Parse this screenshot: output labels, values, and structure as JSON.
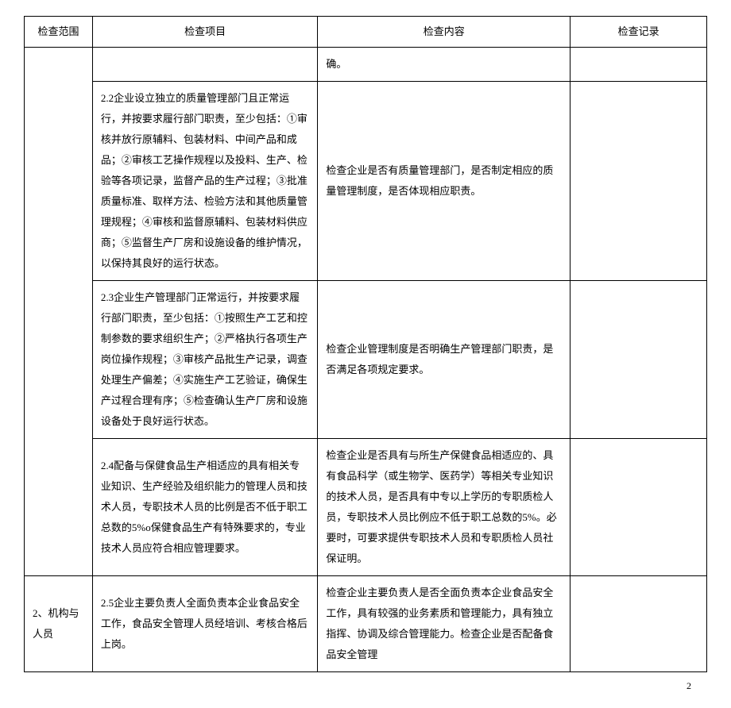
{
  "headers": {
    "scope": "检查范围",
    "item": "检查项目",
    "content": "检查内容",
    "record": "检查记录"
  },
  "rows": [
    {
      "scope": "",
      "item": "",
      "content": "确。",
      "record": ""
    },
    {
      "scope": "",
      "item": "2.2企业设立独立的质量管理部门且正常运行，并按要求履行部门职责，至少包括：①审核并放行原辅料、包装材料、中间产品和成品；②审核工艺操作规程以及投料、生产、检验等各项记录，监督产品的生产过程；③批准质量标准、取样方法、检验方法和其他质量管理规程；④审核和监督原辅料、包装材料供应商；⑤监督生产厂房和设施设备的维护情况，以保持其良好的运行状态。",
      "content": "检查企业是否有质量管理部门，是否制定相应的质量管理制度，是否体现相应职责。",
      "record": ""
    },
    {
      "scope": "",
      "item": "2.3企业生产管理部门正常运行，并按要求履行部门职责，至少包括：①按照生产工艺和控制参数的要求组织生产；②严格执行各项生产岗位操作规程；③审核产品批生产记录，调查处理生产偏差；④实施生产工艺验证，确保生产过程合理有序；⑤检查确认生产厂房和设施设备处于良好运行状态。",
      "content": "检查企业管理制度是否明确生产管理部门职责，是否满足各项规定要求。",
      "record": ""
    },
    {
      "scope": "",
      "item": "2.4配备与保健食品生产相适应的具有相关专业知识、生产经验及组织能力的管理人员和技术人员，专职技术人员的比例是否不低于职工总数的5%o保健食品生产有特殊要求的，专业技术人员应符合相应管理要求。",
      "content": "检查企业是否具有与所生产保健食品相适应的、具有食品科学（或生物学、医药学）等相关专业知识的技术人员，是否具有中专以上学历的专职质检人员，专职技术人员比例应不低于职工总数的5%。必要时，可要求提供专职技术人员和专职质检人员社保证明。",
      "record": ""
    },
    {
      "scope": "2、机构与人员",
      "item": "2.5企业主要负责人全面负责本企业食品安全工作，食品安全管理人员经培训、考核合格后上岗。",
      "content": "检查企业主要负责人是否全面负责本企业食品安全工作，具有较强的业务素质和管理能力，具有独立指挥、协调及综合管理能力。检查企业是否配备食品安全管理",
      "record": ""
    }
  ],
  "pageNumber": "2"
}
